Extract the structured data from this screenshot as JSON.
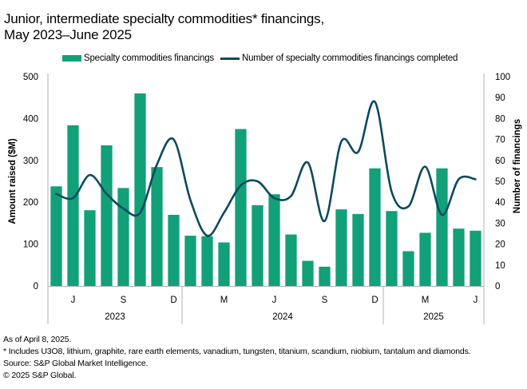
{
  "chart_data": {
    "type": "bar",
    "title": "Junior, intermediate specialty commodities* financings,",
    "subtitle": "May 2023–June 2025",
    "categories": [
      "May 2023",
      "Jun 2023",
      "Jul 2023",
      "Aug 2023",
      "Sep 2023",
      "Oct 2023",
      "Nov 2023",
      "Dec 2023",
      "Jan 2024",
      "Feb 2024",
      "Mar 2024",
      "Apr 2024",
      "May 2024",
      "Jun 2024",
      "Jul 2024",
      "Aug 2024",
      "Sep 2024",
      "Oct 2024",
      "Nov 2024",
      "Dec 2024",
      "Jan 2025",
      "Feb 2025",
      "Mar 2025",
      "Apr 2025",
      "May 2025",
      "Jun 2025"
    ],
    "series": [
      {
        "name": "Specialty commodities financings",
        "type": "bar",
        "axis": "left",
        "color": "#12a079",
        "values": [
          238,
          384,
          181,
          336,
          234,
          460,
          284,
          170,
          120,
          119,
          104,
          375,
          193,
          219,
          123,
          60,
          46,
          183,
          172,
          281,
          179,
          83,
          127,
          281,
          137,
          132
        ]
      },
      {
        "name": "Number of specialty commodities financings completed",
        "type": "line",
        "axis": "right",
        "color": "#0b4a5e",
        "values": [
          44,
          42,
          53,
          44,
          37,
          35,
          58,
          70,
          41,
          24,
          35,
          48,
          50,
          42,
          43,
          59,
          31,
          69,
          64,
          88,
          45,
          38,
          57,
          34,
          51,
          51
        ]
      }
    ],
    "x_tick_labels": [
      {
        "index": 1,
        "label": "J"
      },
      {
        "index": 4,
        "label": "S"
      },
      {
        "index": 7,
        "label": "D"
      },
      {
        "index": 10,
        "label": "M"
      },
      {
        "index": 13,
        "label": "J"
      },
      {
        "index": 16,
        "label": "S"
      },
      {
        "index": 19,
        "label": "D"
      },
      {
        "index": 22,
        "label": "M"
      },
      {
        "index": 25,
        "label": "J"
      }
    ],
    "year_groups": [
      {
        "label": "2023",
        "start": 0,
        "end": 7
      },
      {
        "label": "2024",
        "start": 8,
        "end": 19
      },
      {
        "label": "2025",
        "start": 20,
        "end": 25
      }
    ],
    "ylabel": "Amount raised ($M)",
    "ylim": [
      0,
      500
    ],
    "yticks": [
      0,
      100,
      200,
      300,
      400,
      500
    ],
    "y2label": "Number of financings",
    "y2lim": [
      0,
      100
    ],
    "y2ticks": [
      0,
      10,
      20,
      30,
      40,
      50,
      60,
      70,
      80,
      90,
      100
    ],
    "grid": false,
    "legend_position": "top"
  },
  "legend": {
    "bar_label": "Specialty commodities financings",
    "line_label": "Number of specialty commodities financings completed"
  },
  "footer": {
    "asof": "As of April 8, 2025.",
    "note": "* Includes U3O8, lithium, graphite, rare earth elements, vanadium, tungsten, titanium, scandium, niobium, tantalum and diamonds.",
    "source": "Source: S&P Global Market Intelligence.",
    "copyright": "© 2025 S&P Global."
  }
}
